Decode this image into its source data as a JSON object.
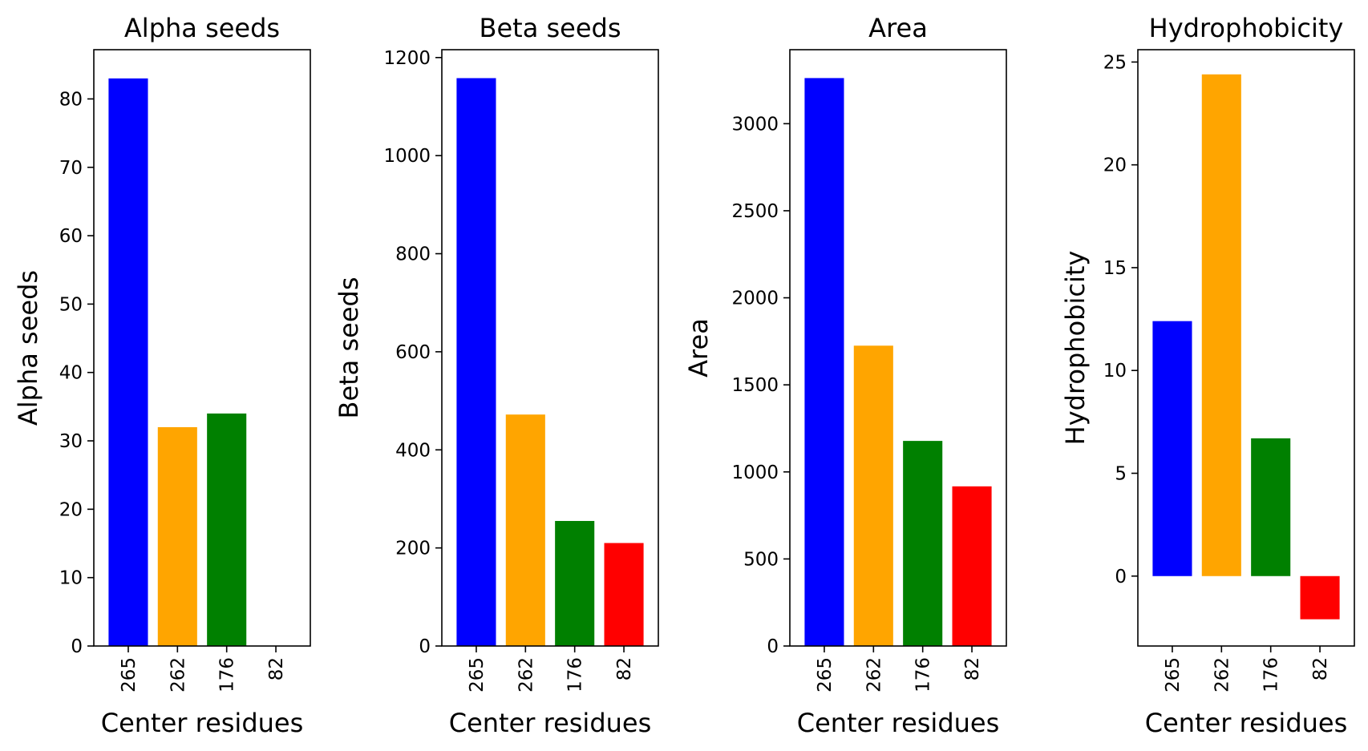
{
  "chart_data": [
    {
      "type": "bar",
      "title": "Alpha seeds",
      "xlabel": "Center residues",
      "ylabel": "Alpha seeds",
      "categories": [
        "265",
        "262",
        "176",
        "82"
      ],
      "values": [
        83,
        32,
        34,
        0
      ],
      "colors": [
        "#0000ff",
        "#ffa500",
        "#008000",
        "#ff0000"
      ],
      "ylim": [
        0,
        87.2
      ],
      "yticks": [
        0,
        10,
        20,
        30,
        40,
        50,
        60,
        70,
        80
      ]
    },
    {
      "type": "bar",
      "title": "Beta seeds",
      "xlabel": "Center residues",
      "ylabel": "Beta seeds",
      "categories": [
        "265",
        "262",
        "176",
        "82"
      ],
      "values": [
        1158,
        472,
        255,
        210
      ],
      "colors": [
        "#0000ff",
        "#ffa500",
        "#008000",
        "#ff0000"
      ],
      "ylim": [
        0,
        1216
      ],
      "yticks": [
        0,
        200,
        400,
        600,
        800,
        1000,
        1200
      ]
    },
    {
      "type": "bar",
      "title": "Area",
      "xlabel": "Center residues",
      "ylabel": "Area",
      "categories": [
        "265",
        "262",
        "176",
        "82"
      ],
      "values": [
        3262,
        1725,
        1178,
        917
      ],
      "colors": [
        "#0000ff",
        "#ffa500",
        "#008000",
        "#ff0000"
      ],
      "ylim": [
        0,
        3425
      ],
      "yticks": [
        0,
        500,
        1000,
        1500,
        2000,
        2500,
        3000
      ]
    },
    {
      "type": "bar",
      "title": "Hydrophobicity",
      "xlabel": "Center residues",
      "ylabel": "Hydrophobicity",
      "categories": [
        "265",
        "262",
        "176",
        "82"
      ],
      "values": [
        12.4,
        24.4,
        6.7,
        -2.1
      ],
      "colors": [
        "#0000ff",
        "#ffa500",
        "#008000",
        "#ff0000"
      ],
      "ylim": [
        -3.4,
        25.6
      ],
      "yticks": [
        0,
        5,
        10,
        15,
        20,
        25
      ]
    }
  ]
}
